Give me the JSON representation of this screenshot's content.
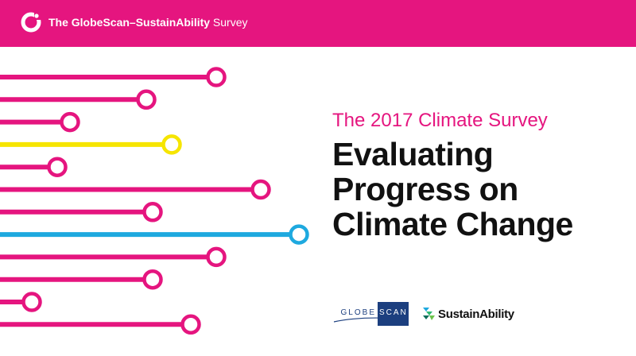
{
  "header": {
    "title_bold": "The GlobeScan–SustainAbility",
    "title_rest": " Survey",
    "background": "#e5157f",
    "logo_icon": "ring-logo-icon"
  },
  "graphic": {
    "colors": {
      "magenta": "#e5157f",
      "yellow": "#f6e500",
      "cyan": "#1ea9df"
    },
    "lines": [
      {
        "color": "magenta",
        "length": 0.34
      },
      {
        "color": "magenta",
        "length": 0.23
      },
      {
        "color": "magenta",
        "length": 0.11
      },
      {
        "color": "yellow",
        "length": 0.27
      },
      {
        "color": "magenta",
        "length": 0.09
      },
      {
        "color": "magenta",
        "length": 0.41
      },
      {
        "color": "magenta",
        "length": 0.24
      },
      {
        "color": "cyan",
        "length": 0.47
      },
      {
        "color": "magenta",
        "length": 0.34
      },
      {
        "color": "magenta",
        "length": 0.24
      },
      {
        "color": "magenta",
        "length": 0.05
      },
      {
        "color": "magenta",
        "length": 0.3
      }
    ]
  },
  "content": {
    "subtitle": "The 2017 Climate Survey",
    "title_lines": [
      "Evaluating",
      "Progress on",
      "Climate Change"
    ]
  },
  "logos": {
    "globescan_left": "GLOBE",
    "globescan_right": "SCAN",
    "sustainability": "SustainAbility",
    "sustainability_icon": "sustainability-mark-icon"
  }
}
